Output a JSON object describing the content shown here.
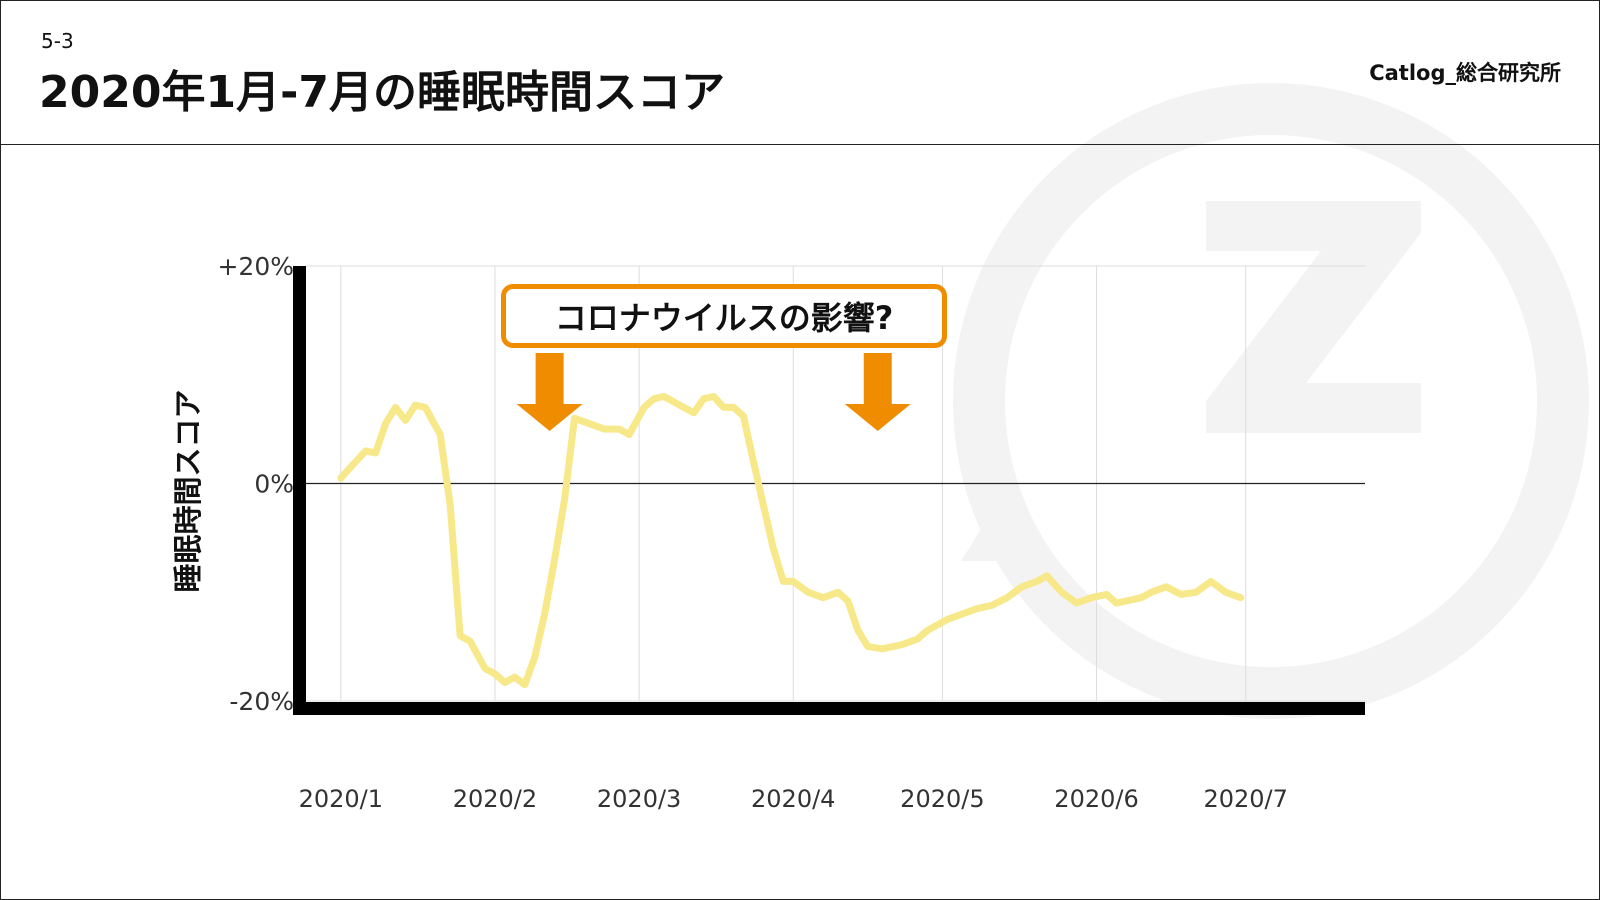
{
  "header": {
    "slide_number": "5-3",
    "title": "2020年1月-7月の睡眠時間スコア",
    "brand": "Catlog_総合研究所"
  },
  "colors": {
    "line": "#f7e88a",
    "arrow": "#f08c00",
    "callout_border": "#f08c00",
    "axis": "#000000",
    "grid": "#dddddd",
    "watermark": "#f3f3f3"
  },
  "callout": {
    "text": "コロナウイルスの影響?"
  },
  "chart_data": {
    "type": "line",
    "title": "",
    "xlabel": "",
    "ylabel": "睡眠時間スコア",
    "ylim": [
      -20,
      20
    ],
    "y_ticks": [
      {
        "value": 20,
        "label": "+20%"
      },
      {
        "value": 0,
        "label": "0%"
      },
      {
        "value": -20,
        "label": "-20%"
      }
    ],
    "x_ticks": [
      {
        "value": "2020-01-01",
        "label": "2020/1"
      },
      {
        "value": "2020-02-01",
        "label": "2020/2"
      },
      {
        "value": "2020-03-01",
        "label": "2020/3"
      },
      {
        "value": "2020-04-01",
        "label": "2020/4"
      },
      {
        "value": "2020-05-01",
        "label": "2020/5"
      },
      {
        "value": "2020-06-01",
        "label": "2020/6"
      },
      {
        "value": "2020-07-01",
        "label": "2020/7"
      }
    ],
    "xlim": [
      "2019-12-25",
      "2020-07-25"
    ],
    "grid": true,
    "legend": "none",
    "series": [
      {
        "x": [
          "2020-01-01",
          "2020-01-03",
          "2020-01-06",
          "2020-01-08",
          "2020-01-10",
          "2020-01-12",
          "2020-01-14",
          "2020-01-16",
          "2020-01-18",
          "2020-01-21",
          "2020-01-23",
          "2020-01-25",
          "2020-01-27",
          "2020-01-30",
          "2020-02-01",
          "2020-02-03",
          "2020-02-05",
          "2020-02-07",
          "2020-02-09",
          "2020-02-11",
          "2020-02-13",
          "2020-02-15",
          "2020-02-17",
          "2020-02-20",
          "2020-02-23",
          "2020-02-26",
          "2020-02-28",
          "2020-03-02",
          "2020-03-04",
          "2020-03-06",
          "2020-03-08",
          "2020-03-10",
          "2020-03-12",
          "2020-03-14",
          "2020-03-16",
          "2020-03-18",
          "2020-03-20",
          "2020-03-22",
          "2020-03-24",
          "2020-03-26",
          "2020-03-28",
          "2020-03-30",
          "2020-04-01",
          "2020-04-04",
          "2020-04-07",
          "2020-04-10",
          "2020-04-12",
          "2020-04-14",
          "2020-04-16",
          "2020-04-19",
          "2020-04-21",
          "2020-04-23",
          "2020-04-26",
          "2020-04-28",
          "2020-04-30",
          "2020-05-02",
          "2020-05-05",
          "2020-05-08",
          "2020-05-11",
          "2020-05-14",
          "2020-05-17",
          "2020-05-20",
          "2020-05-22",
          "2020-05-25",
          "2020-05-28",
          "2020-05-31",
          "2020-06-03",
          "2020-06-05",
          "2020-06-07",
          "2020-06-10",
          "2020-06-12",
          "2020-06-15",
          "2020-06-18",
          "2020-06-21",
          "2020-06-24",
          "2020-06-27",
          "2020-06-30"
        ],
        "values": [
          0.5,
          1.5,
          3.0,
          2.8,
          5.5,
          7.0,
          5.8,
          7.2,
          7.0,
          4.5,
          -2.0,
          -14.0,
          -14.5,
          -17.0,
          -17.5,
          -18.3,
          -17.8,
          -18.5,
          -16.0,
          -12.0,
          -7.0,
          -1.5,
          6.0,
          5.5,
          5.0,
          5.0,
          4.5,
          7.0,
          7.8,
          8.0,
          7.5,
          7.0,
          6.5,
          7.8,
          8.0,
          7.0,
          7.0,
          6.2,
          2.0,
          -2.0,
          -6.0,
          -9.0,
          -9.0,
          -10.0,
          -10.5,
          -10.0,
          -10.8,
          -13.5,
          -15.0,
          -15.2,
          -15.0,
          -14.8,
          -14.3,
          -13.5,
          -13.0,
          -12.5,
          -12.0,
          -11.5,
          -11.2,
          -10.5,
          -9.5,
          -9.0,
          -8.5,
          -10.0,
          -11.0,
          -10.5,
          -10.2,
          -11.0,
          -10.8,
          -10.5,
          -10.0,
          -9.5,
          -10.2,
          -10.0,
          -9.0,
          -10.0,
          -10.5
        ]
      }
    ]
  }
}
